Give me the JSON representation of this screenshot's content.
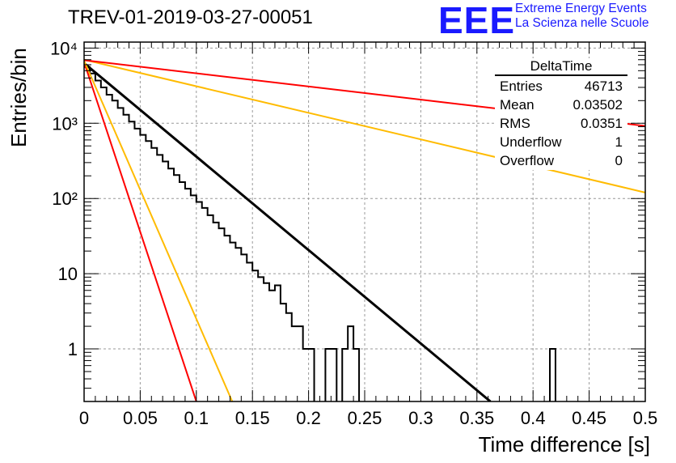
{
  "title": "TREV-01-2019-03-27-00051",
  "logo": {
    "mark": "EEE",
    "line1": "Extreme Energy Events",
    "line2": "La Scienza nelle Scuole"
  },
  "stats": {
    "name": "DeltaTime",
    "rows": [
      {
        "label": "Entries",
        "value": "46713"
      },
      {
        "label": "Mean",
        "value": "0.03502"
      },
      {
        "label": "RMS",
        "value": "0.0351"
      },
      {
        "label": "Underflow",
        "value": "1"
      },
      {
        "label": "Overflow",
        "value": "0"
      }
    ]
  },
  "chart_data": {
    "type": "line",
    "xlabel": "Time difference [s]",
    "ylabel": "Entries/bin",
    "xlim": [
      0,
      0.5
    ],
    "ylim": [
      0.2,
      12000
    ],
    "log_y": true,
    "grid": true,
    "x_ticks": [
      "0",
      "0.05",
      "0.1",
      "0.15",
      "0.2",
      "0.25",
      "0.3",
      "0.35",
      "0.4",
      "0.45",
      "0.5"
    ],
    "y_ticks": [
      {
        "value": 1,
        "label": "1"
      },
      {
        "value": 10,
        "label": "10"
      },
      {
        "value": 100,
        "label": "10²"
      },
      {
        "value": 1000,
        "label": "10³"
      },
      {
        "value": 10000,
        "label": "10⁴"
      }
    ],
    "histogram": {
      "color": "#000000",
      "bin_width": 0.005,
      "x_start": 0,
      "counts": [
        5600,
        4600,
        3700,
        3000,
        2400,
        2000,
        1600,
        1300,
        1050,
        850,
        700,
        580,
        470,
        380,
        310,
        250,
        205,
        165,
        135,
        110,
        90,
        75,
        60,
        48,
        40,
        32,
        26,
        22,
        18,
        14,
        11,
        9,
        7.5,
        6,
        7,
        4,
        3,
        2,
        2,
        1,
        1,
        0,
        0,
        1,
        1,
        0,
        1,
        2,
        1,
        0,
        0,
        0,
        0,
        0,
        0,
        0,
        0,
        0,
        0,
        0,
        0,
        0,
        0,
        0,
        0,
        0,
        0,
        0,
        0,
        0,
        0,
        0,
        0,
        0,
        0,
        0,
        0,
        0,
        0,
        0,
        0,
        0,
        0,
        1,
        0,
        0,
        0,
        0,
        0,
        0,
        0,
        0,
        0,
        0,
        0,
        0,
        0,
        0,
        0,
        0
      ]
    },
    "series": [
      {
        "color": "#000000",
        "x": [
          0,
          0.362
        ],
        "y": [
          6300,
          0.2
        ]
      },
      {
        "color": "#ff0000",
        "x": [
          0,
          0.1
        ],
        "y": [
          6500,
          0.2
        ]
      },
      {
        "color": "#ffbb00",
        "x": [
          0,
          0.132
        ],
        "y": [
          6800,
          0.2
        ]
      },
      {
        "color": "#ffbb00",
        "x": [
          0,
          0.5
        ],
        "y": [
          7000,
          120
        ]
      },
      {
        "color": "#ff0000",
        "x": [
          0,
          0.5
        ],
        "y": [
          6900,
          920
        ]
      }
    ]
  }
}
